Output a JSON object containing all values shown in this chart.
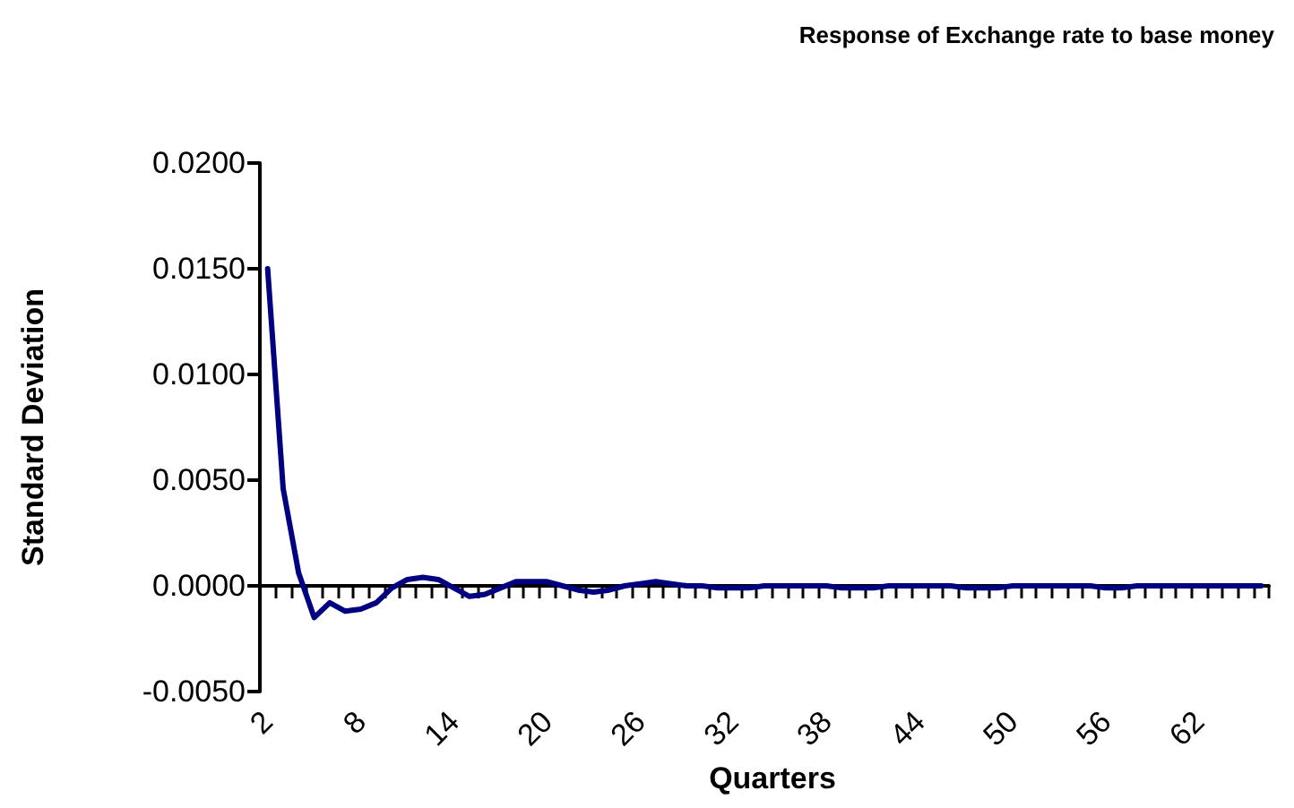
{
  "chart_data": {
    "type": "line",
    "title": "Response of Exchange rate to base money",
    "xlabel": "Quarters",
    "ylabel": "Standard Deviation",
    "categories": [
      "2",
      null,
      null,
      null,
      null,
      null,
      "8",
      null,
      null,
      null,
      null,
      null,
      "14",
      null,
      null,
      null,
      null,
      null,
      "20",
      null,
      null,
      null,
      null,
      null,
      "26",
      null,
      null,
      null,
      null,
      null,
      "32",
      null,
      null,
      null,
      null,
      null,
      "38",
      null,
      null,
      null,
      null,
      null,
      "44",
      null,
      null,
      null,
      null,
      null,
      "50",
      null,
      null,
      null,
      null,
      null,
      "56",
      null,
      null,
      null,
      null,
      null,
      "62",
      null,
      null,
      null,
      null
    ],
    "series": [
      {
        "color": "#000080",
        "values": [
          0.015,
          0.0046,
          0.0006,
          -0.0015,
          -0.0008,
          -0.0012,
          -0.0011,
          -0.0008,
          -0.0001,
          0.0003,
          0.0004,
          0.0003,
          -0.0001,
          -0.0005,
          -0.0004,
          -0.0001,
          0.0002,
          0.0002,
          0.0002,
          0.0,
          -0.0002,
          -0.0003,
          -0.0002,
          0.0,
          0.0001,
          0.0002,
          0.0001,
          0.0,
          0.0,
          -0.0001,
          -0.0001,
          -0.0001,
          0.0,
          0.0,
          0.0,
          0.0,
          0.0,
          -0.0001,
          -0.0001,
          -0.0001,
          0.0,
          0.0,
          0.0,
          0.0,
          0.0,
          -0.0001,
          -0.0001,
          -0.0001,
          0.0,
          0.0,
          0.0,
          0.0,
          0.0,
          0.0,
          -0.0001,
          -0.0001,
          0.0,
          0.0,
          0.0,
          0.0,
          0.0,
          0.0,
          0.0,
          0.0,
          0.0
        ]
      }
    ],
    "ylim": [
      -0.005,
      0.02
    ],
    "yticks": [
      {
        "value": -0.005,
        "label": "-0.0050"
      },
      {
        "value": 0,
        "label": "0.0000"
      },
      {
        "value": 0.005,
        "label": "0.0050"
      },
      {
        "value": 0.01,
        "label": "0.0100"
      },
      {
        "value": 0.015,
        "label": "0.0150"
      },
      {
        "value": 0.02,
        "label": "0.0200"
      }
    ],
    "marker": "none",
    "line_style": "solid"
  }
}
